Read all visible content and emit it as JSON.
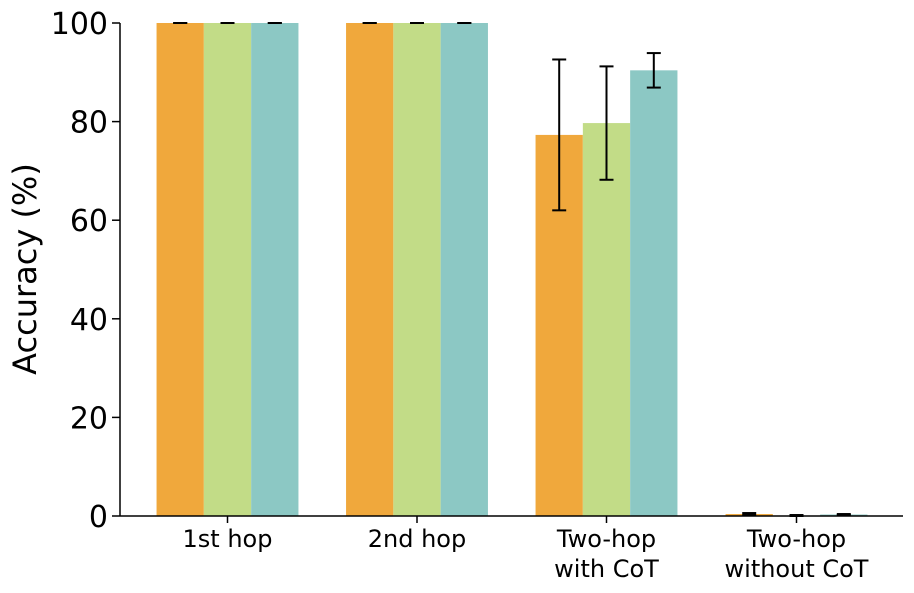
{
  "chart_data": {
    "type": "bar",
    "categories": [
      [
        "1st hop"
      ],
      [
        "2nd hop"
      ],
      [
        "Two-hop",
        "with CoT"
      ],
      [
        "Two-hop",
        "without CoT"
      ]
    ],
    "series": [
      {
        "color": "#F0A83C",
        "values": [
          100,
          100,
          77.3,
          0.4
        ],
        "errors": [
          0,
          0,
          15.3,
          0.2
        ]
      },
      {
        "color": "#C2DC87",
        "values": [
          100,
          100,
          79.7,
          0.1
        ],
        "errors": [
          0,
          0,
          11.5,
          0.1
        ]
      },
      {
        "color": "#8CC8C4",
        "values": [
          100,
          100,
          90.4,
          0.3
        ],
        "errors": [
          0,
          0,
          3.5,
          0.1
        ]
      }
    ],
    "ylabel": "Accuracy (%)",
    "ylim": [
      0,
      100
    ],
    "yticks": [
      0,
      20,
      40,
      60,
      80,
      100
    ],
    "grid": false,
    "legend": "none"
  }
}
